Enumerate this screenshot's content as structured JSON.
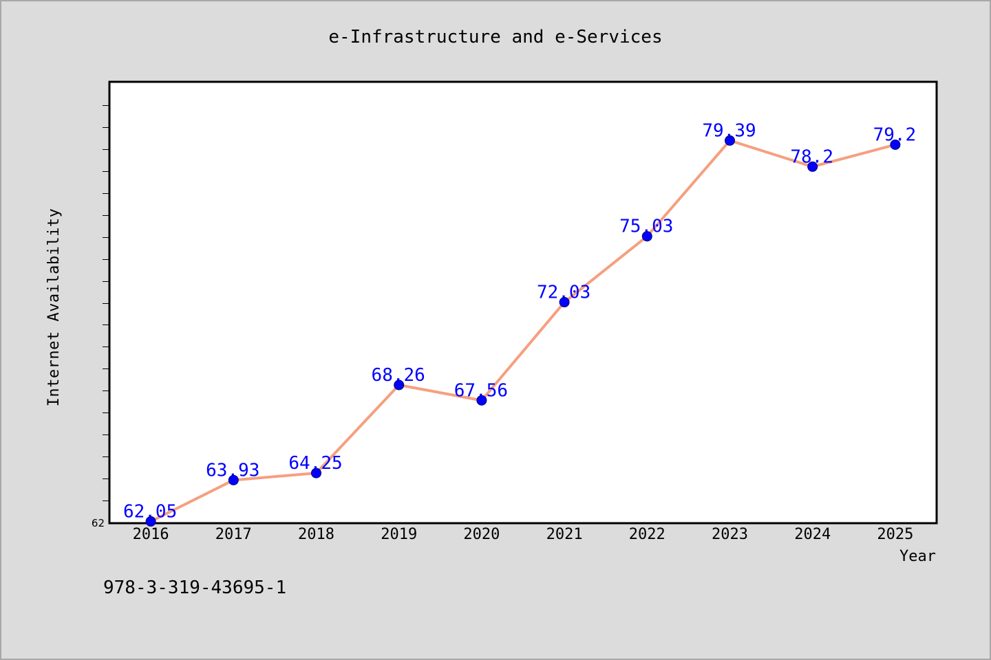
{
  "colors": {
    "background": "#dcdcdc",
    "frame_border": "#a8a8a8",
    "plot_background": "#ffffff",
    "plot_border": "#000000",
    "line": "#f5a07f",
    "marker_fill": "#0000ff",
    "marker_stroke": "#000070",
    "data_label": "#0000ff",
    "tick": "#000000"
  },
  "footer_text": "978-3-319-43695-1",
  "chart_data": {
    "type": "line",
    "title": "e-Infrastructure and e-Services",
    "xlabel": "Year",
    "ylabel": "Internet Availability",
    "categories": [
      "2016",
      "2017",
      "2018",
      "2019",
      "2020",
      "2021",
      "2022",
      "2023",
      "2024",
      "2025"
    ],
    "series": [
      {
        "values": [
          62.05,
          63.93,
          64.25,
          68.26,
          67.56,
          72.03,
          75.03,
          79.39,
          78.2,
          79.2
        ],
        "data_labels": [
          "62.05",
          "63.93",
          "64.25",
          "68.26",
          "67.56",
          "72.03",
          "75.03",
          "79.39",
          "78.2",
          "79.2"
        ],
        "marker": "circle"
      }
    ],
    "ylim": [
      62,
      82
    ],
    "ytick_step": 1,
    "ytick_labels": [
      "62"
    ],
    "grid": false,
    "legend": "none"
  }
}
